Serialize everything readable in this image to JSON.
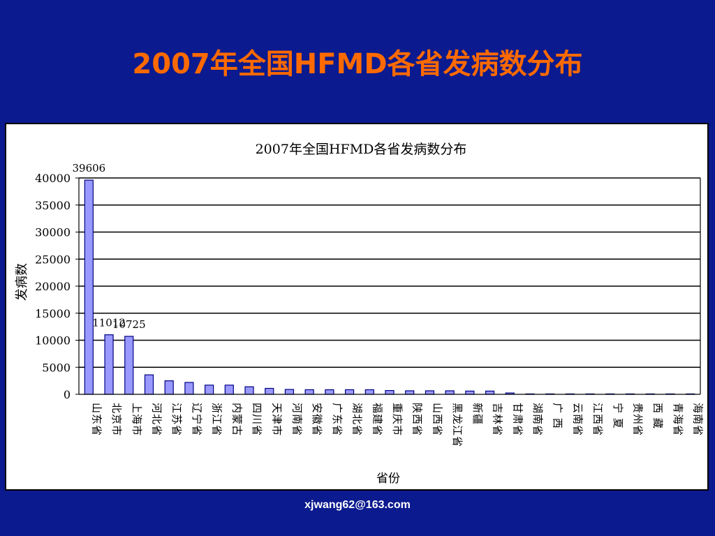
{
  "slide": {
    "title": "2007年全国HFMD各省发病数分布",
    "footer": "xjwang62@163.com"
  },
  "colors": {
    "background": "#0b1a8e",
    "title": "#ff6a00",
    "bar_fill": "#9999ff",
    "bar_stroke": "#000080"
  },
  "chart_data": {
    "type": "bar",
    "title": "2007年全国HFMD各省发病数分布",
    "xlabel": "省份",
    "ylabel": "发病数",
    "ylim": [
      0,
      40000
    ],
    "yticks": [
      0,
      5000,
      10000,
      15000,
      20000,
      25000,
      30000,
      35000,
      40000
    ],
    "grid": "horizontal",
    "legend": "none",
    "categories": [
      "山东省",
      "北京市",
      "上海市",
      "河北省",
      "江苏省",
      "辽宁省",
      "浙江省",
      "内蒙古",
      "四川省",
      "天津市",
      "河南省",
      "安徽省",
      "广东省",
      "湖北省",
      "福建省",
      "重庆市",
      "陕西省",
      "山西省",
      "黑龙江省",
      "新疆",
      "吉林省",
      "甘肃省",
      "湖南省",
      "广 西",
      "云南省",
      "江西省",
      "宁 夏",
      "贵州省",
      "西 藏",
      "青海省",
      "海南省"
    ],
    "values": [
      39606,
      11012,
      10725,
      3600,
      2500,
      2200,
      1700,
      1700,
      1400,
      1100,
      900,
      850,
      850,
      850,
      850,
      700,
      650,
      650,
      650,
      600,
      600,
      250,
      50,
      40,
      30,
      20,
      15,
      10,
      5,
      5,
      5
    ],
    "data_labels": [
      {
        "index": 0,
        "text": "39606"
      },
      {
        "index": 1,
        "text": "11012"
      },
      {
        "index": 2,
        "text": "10725"
      }
    ]
  }
}
